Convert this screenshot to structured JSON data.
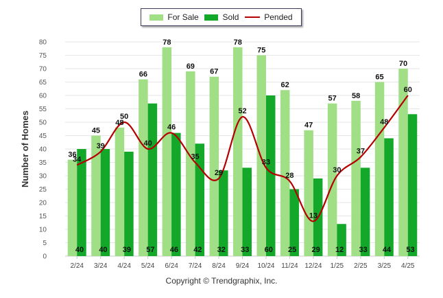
{
  "legend": {
    "for_sale": "For Sale",
    "sold": "Sold",
    "pended": "Pended"
  },
  "copyright": "Copyright © Trendgraphix, Inc.",
  "colors": {
    "for_sale": "#a1df86",
    "sold": "#13a829",
    "pended": "#b40000"
  },
  "chart_data": {
    "type": "bar",
    "categories": [
      "2/24",
      "3/24",
      "4/24",
      "5/24",
      "6/24",
      "7/24",
      "8/24",
      "9/24",
      "10/24",
      "11/24",
      "12/24",
      "1/25",
      "2/25",
      "3/25",
      "4/25"
    ],
    "series": [
      {
        "name": "For Sale",
        "type": "bar",
        "values": [
          36,
          45,
          48,
          66,
          78,
          69,
          67,
          78,
          75,
          62,
          47,
          57,
          58,
          65,
          70
        ]
      },
      {
        "name": "Sold",
        "type": "bar",
        "values": [
          40,
          40,
          39,
          57,
          46,
          42,
          32,
          33,
          60,
          25,
          29,
          12,
          33,
          44,
          53
        ]
      },
      {
        "name": "Pended",
        "type": "line",
        "values": [
          34,
          39,
          50,
          40,
          46,
          35,
          29,
          52,
          33,
          28,
          13,
          30,
          37,
          48,
          60
        ]
      }
    ],
    "ylabel": "Number of Homes",
    "xlabel": "",
    "ylim": [
      0,
      80
    ],
    "yticks": [
      0,
      5,
      10,
      15,
      20,
      25,
      30,
      35,
      40,
      45,
      50,
      55,
      60,
      65,
      70,
      75,
      80
    ],
    "grid": true,
    "legend_position": "top"
  }
}
